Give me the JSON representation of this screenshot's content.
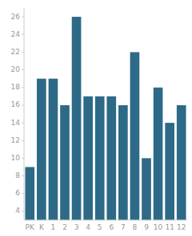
{
  "chart_data": {
    "type": "bar",
    "categories": [
      "PK",
      "K",
      "1",
      "2",
      "3",
      "4",
      "5",
      "6",
      "7",
      "8",
      "9",
      "10",
      "11",
      "12"
    ],
    "values": [
      9,
      19,
      19,
      16,
      26,
      17,
      17,
      17,
      16,
      22,
      10,
      18,
      14,
      16
    ],
    "color": "#2d6a87",
    "ylim": [
      3,
      27
    ],
    "yticks": [
      4,
      6,
      8,
      10,
      12,
      14,
      16,
      18,
      20,
      22,
      24,
      26
    ],
    "grid": false
  }
}
